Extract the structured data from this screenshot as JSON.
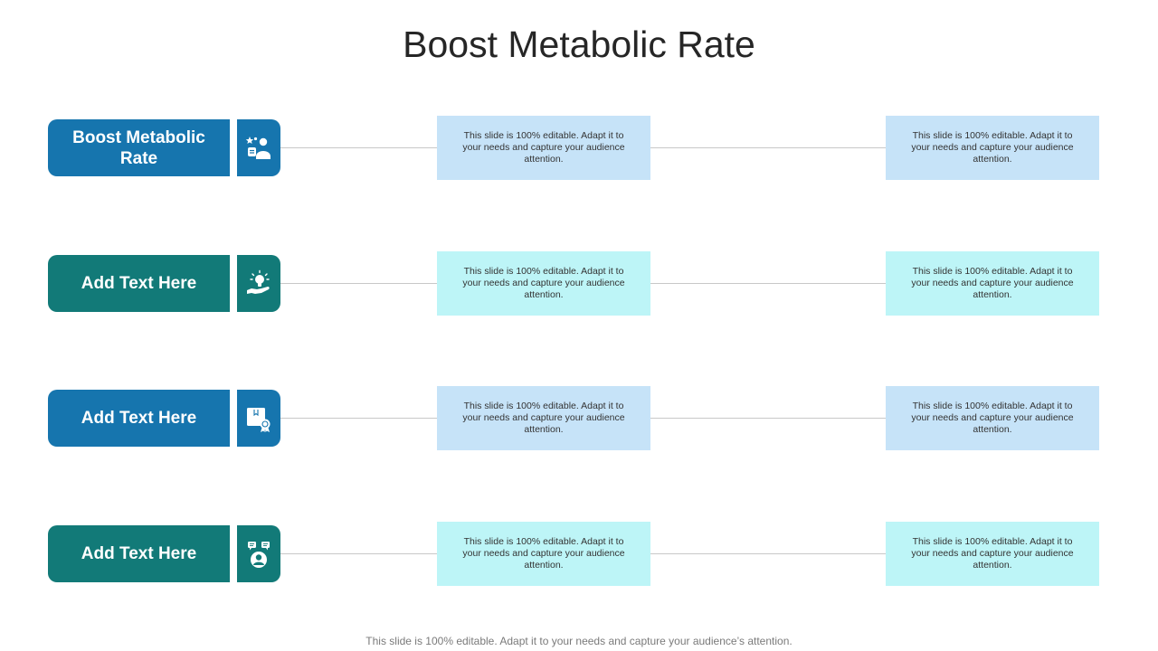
{
  "slide": {
    "title": "Boost Metabolic Rate",
    "footer": "This slide is 100% editable. Adapt it to your needs and capture your audience’s attention."
  },
  "rows": [
    {
      "label": "Boost Metabolic Rate",
      "icon": "users-star-icon",
      "box1": "This slide is 100% editable.  Adapt it to your needs and capture your audience attention.",
      "box2": "This slide is 100% editable.  Adapt it to your needs and capture your audience attention."
    },
    {
      "label": "Add Text Here",
      "icon": "idea-hand-icon",
      "box1": "This slide is 100% editable.  Adapt it to your needs and capture your audience attention.",
      "box2": "This slide is 100% editable.  Adapt it to your needs and capture your audience attention."
    },
    {
      "label": "Add Text Here",
      "icon": "certificate-icon",
      "box1": "This slide is 100% editable.  Adapt it to your needs and capture your audience attention.",
      "box2": "This slide is 100% editable.  Adapt it to your needs and capture your audience attention."
    },
    {
      "label": "Add Text Here",
      "icon": "person-chat-icon",
      "box1": "This slide is 100% editable.  Adapt it to your needs and capture your audience attention.",
      "box2": "This slide is 100% editable.  Adapt it to your needs and capture your audience attention."
    }
  ],
  "colors": {
    "blue": "#1675ae",
    "teal": "#127a78",
    "light_blue": "#c6e3f8",
    "light_cyan": "#bdf5f7",
    "connector": "#c8c8c8"
  }
}
